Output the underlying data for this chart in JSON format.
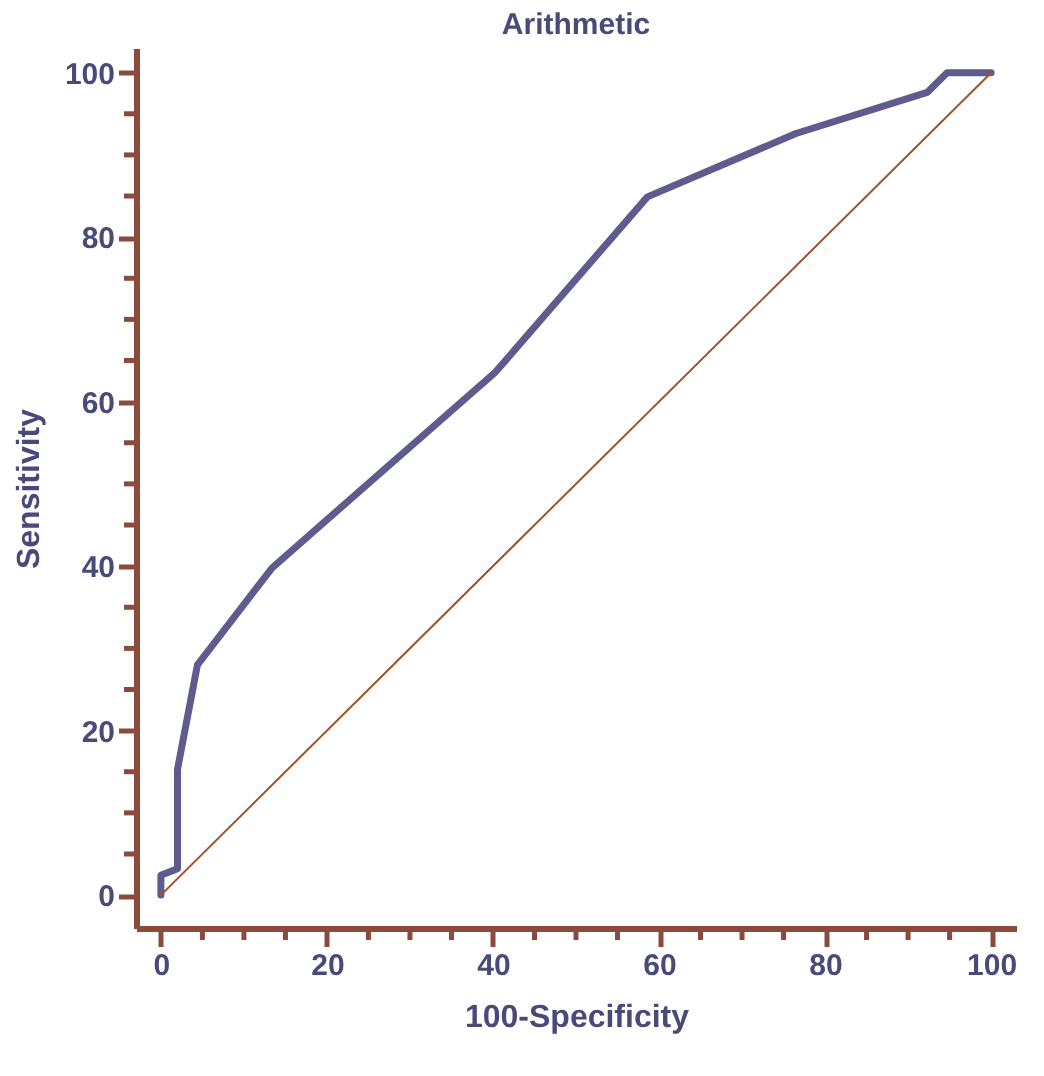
{
  "chart_data": {
    "type": "line",
    "title": "Arithmetic",
    "xlabel": "100-Specificity",
    "ylabel": "Sensitivity",
    "series": [
      {
        "type": "line",
        "color": "#5e5b8e",
        "x": [
          0,
          0,
          2,
          2,
          4.4,
          13.4,
          40.3,
          58.6,
          76.5,
          92.3,
          94.7,
          100
        ],
        "values": [
          0,
          2.4,
          3.2,
          15.3,
          28,
          39.8,
          63.6,
          84.9,
          92.6,
          97.6,
          100,
          100
        ]
      },
      {
        "type": "line",
        "color": "#a0522d",
        "x": [
          0,
          100
        ],
        "values": [
          0,
          100
        ]
      }
    ],
    "xlim": [
      -3,
      103
    ],
    "ylim": [
      -4,
      103
    ],
    "xticks": [
      0,
      {
        "value": 5,
        "label": null
      },
      {
        "value": 10,
        "label": null
      },
      {
        "value": 15,
        "label": null
      },
      20,
      {
        "value": 25,
        "label": null
      },
      {
        "value": 30,
        "label": null
      },
      {
        "value": 35,
        "label": null
      },
      40,
      {
        "value": 45,
        "label": null
      },
      {
        "value": 50,
        "label": null
      },
      {
        "value": 55,
        "label": null
      },
      60,
      {
        "value": 65,
        "label": null
      },
      {
        "value": 70,
        "label": null
      },
      {
        "value": 75,
        "label": null
      },
      80,
      {
        "value": 85,
        "label": null
      },
      {
        "value": 90,
        "label": null
      },
      {
        "value": 95,
        "label": null
      },
      100
    ],
    "yticks": [
      0,
      {
        "value": 5,
        "label": null
      },
      {
        "value": 10,
        "label": null
      },
      {
        "value": 15,
        "label": null
      },
      20,
      {
        "value": 25,
        "label": null
      },
      {
        "value": 30,
        "label": null
      },
      {
        "value": 35,
        "label": null
      },
      40,
      {
        "value": 45,
        "label": null
      },
      {
        "value": 50,
        "label": null
      },
      {
        "value": 55,
        "label": null
      },
      60,
      {
        "value": 65,
        "label": null
      },
      {
        "value": 70,
        "label": null
      },
      {
        "value": 75,
        "label": null
      },
      80,
      {
        "value": 85,
        "label": null
      },
      {
        "value": 90,
        "label": null
      },
      {
        "value": 95,
        "label": null
      },
      100
    ],
    "grid": false,
    "marker": "none",
    "line_style": "solid"
  }
}
